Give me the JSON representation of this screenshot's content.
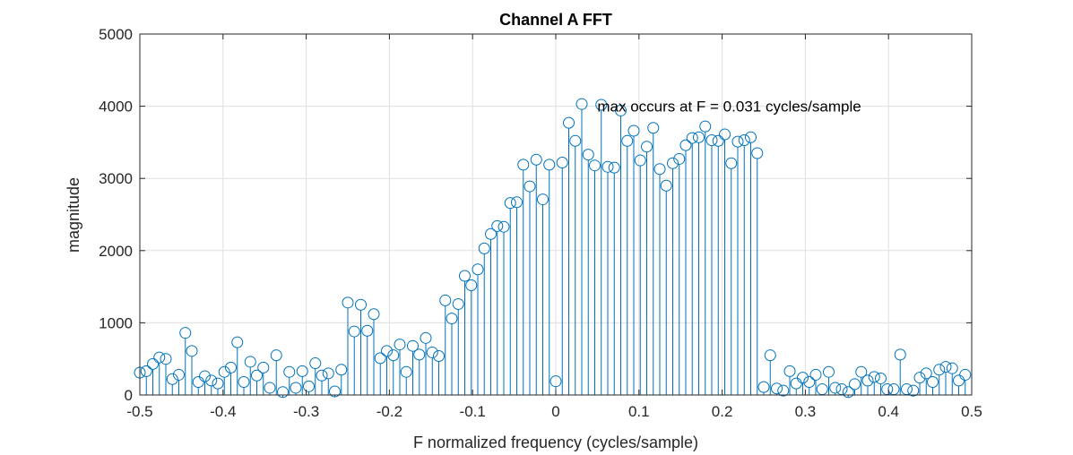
{
  "chart_data": {
    "type": "stem",
    "title": "Channel A FFT",
    "xlabel": "F normalized frequency (cycles/sample)",
    "ylabel": "magnitude",
    "xlim": [
      -0.5,
      0.5
    ],
    "ylim": [
      0,
      5000
    ],
    "xticks": [
      -0.5,
      -0.4,
      -0.3,
      -0.2,
      -0.1,
      0,
      0.1,
      0.2,
      0.3,
      0.4,
      0.5
    ],
    "xtick_labels": [
      "-0.5",
      "-0.4",
      "-0.3",
      "-0.2",
      "-0.1",
      "0",
      "0.1",
      "0.2",
      "0.3",
      "0.4",
      "0.5"
    ],
    "yticks": [
      0,
      1000,
      2000,
      3000,
      4000,
      5000
    ],
    "ytick_labels": [
      "0",
      "1000",
      "2000",
      "3000",
      "4000",
      "5000"
    ],
    "grid": true,
    "annotation": {
      "text": "max occurs at F = 0.031 cycles/sample",
      "x": 0.05,
      "y": 4000
    },
    "color": "#0072BD",
    "x_start": -0.5,
    "x_step": 0.0078125,
    "values": [
      310,
      330,
      430,
      520,
      500,
      220,
      280,
      860,
      610,
      180,
      260,
      200,
      160,
      320,
      380,
      730,
      180,
      460,
      270,
      380,
      100,
      550,
      40,
      320,
      100,
      330,
      120,
      440,
      270,
      300,
      50,
      350,
      1280,
      880,
      1250,
      890,
      1120,
      510,
      610,
      550,
      700,
      320,
      680,
      560,
      790,
      590,
      540,
      1310,
      1060,
      1260,
      1650,
      1520,
      1740,
      2030,
      2230,
      2340,
      2330,
      2660,
      2670,
      3190,
      2890,
      3260,
      2710,
      3190,
      190,
      3220,
      3770,
      3520,
      4030,
      3330,
      3180,
      4020,
      3160,
      3150,
      3940,
      3520,
      3660,
      3250,
      3440,
      3700,
      3130,
      2900,
      3210,
      3270,
      3460,
      3560,
      3570,
      3720,
      3530,
      3520,
      3610,
      3210,
      3510,
      3530,
      3570,
      3350,
      110,
      550,
      90,
      60,
      330,
      160,
      240,
      180,
      280,
      80,
      320,
      100,
      80,
      40,
      150,
      320,
      200,
      250,
      230,
      80,
      80,
      560,
      80,
      60,
      240,
      300,
      180,
      350,
      390,
      370,
      200,
      280
    ]
  }
}
